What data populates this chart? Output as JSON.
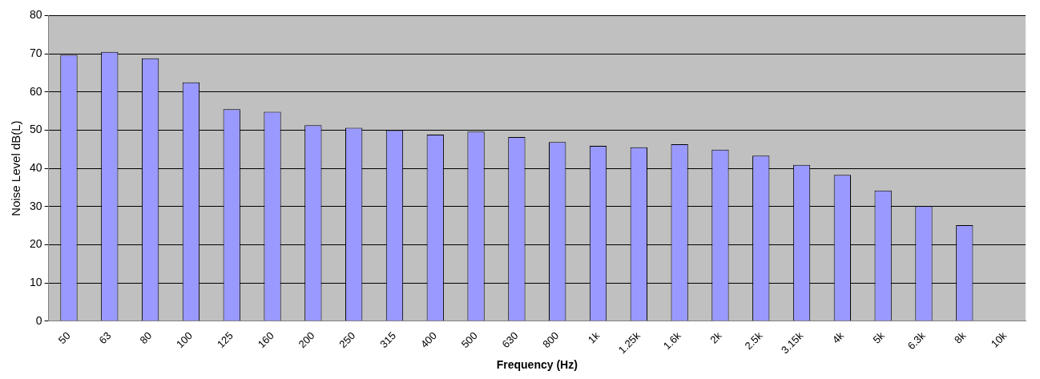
{
  "chart_data": {
    "type": "bar",
    "xlabel": "Frequency (Hz)",
    "ylabel": "Noise Level dB(L)",
    "categories": [
      "50",
      "63",
      "80",
      "100",
      "125",
      "160",
      "200",
      "250",
      "315",
      "400",
      "500",
      "630",
      "800",
      "1k",
      "1.25k",
      "1.6k",
      "2k",
      "2.5k",
      "3.15k",
      "4k",
      "5k",
      "6.3k",
      "8k",
      "10k"
    ],
    "values": [
      69.7,
      70.5,
      68.8,
      62.5,
      55.5,
      54.8,
      51.3,
      50.6,
      50.0,
      48.8,
      49.6,
      48.2,
      46.9,
      45.9,
      45.5,
      46.3,
      44.9,
      43.3,
      40.9,
      38.3,
      34.2,
      30.1,
      25.1,
      null
    ],
    "color": "#9999ff",
    "ylim": [
      0,
      80
    ],
    "yticks": [
      0,
      10,
      20,
      30,
      40,
      50,
      60,
      70,
      80
    ],
    "grid": "y"
  }
}
